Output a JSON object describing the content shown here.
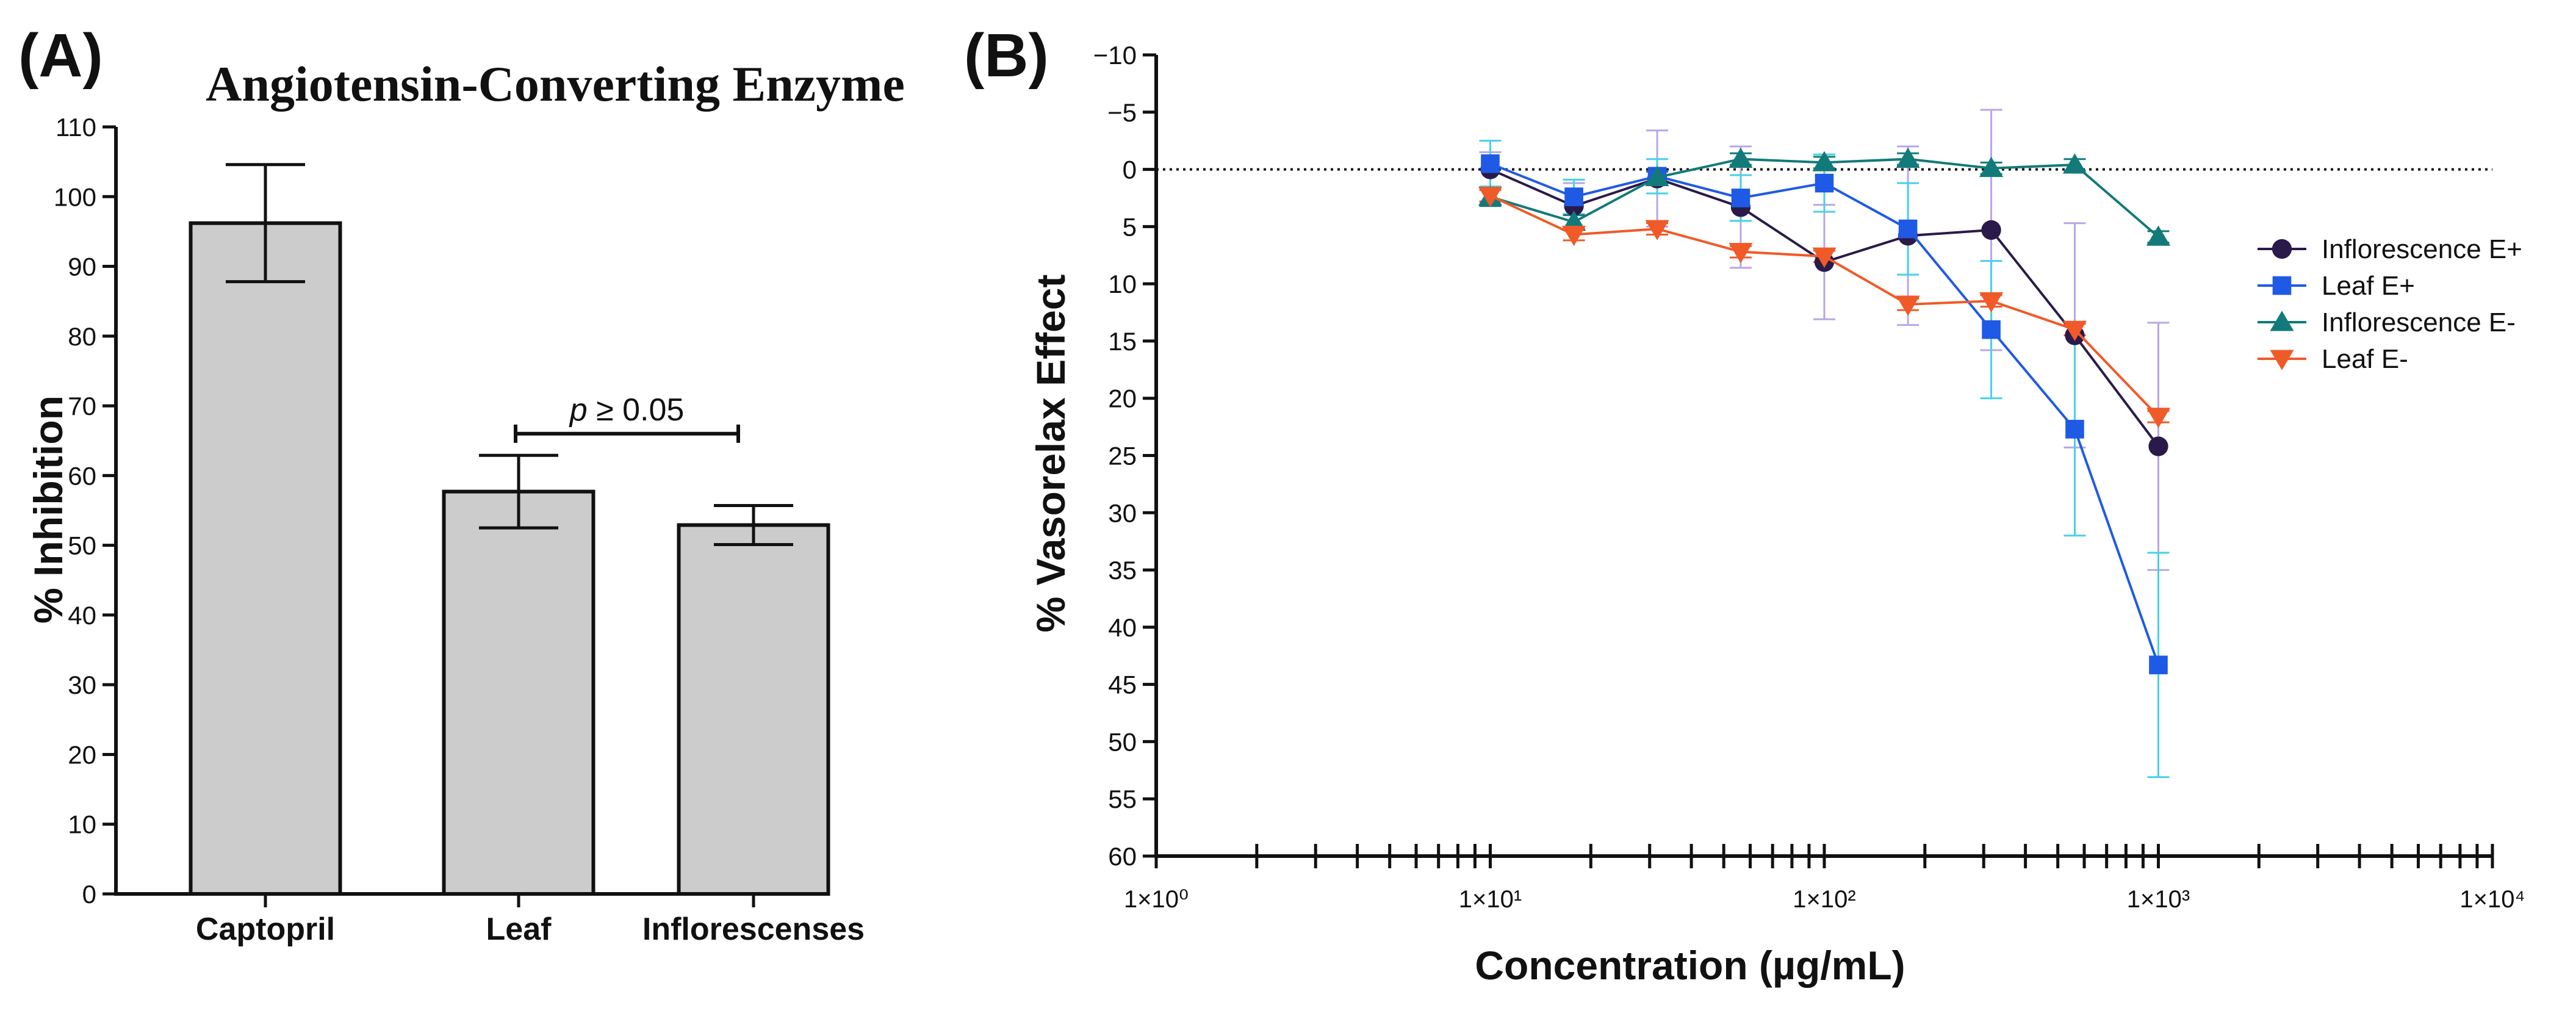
{
  "panels": {
    "a_label": "(A)",
    "b_label": "(B)"
  },
  "chart_data": [
    {
      "id": "A",
      "type": "bar",
      "title": "Angiotensin-Converting Enzyme",
      "xlabel": "",
      "ylabel": "% Inhibition",
      "ylim": [
        0,
        110
      ],
      "yticks": [
        0,
        10,
        20,
        30,
        40,
        50,
        60,
        70,
        80,
        90,
        100,
        110
      ],
      "categories": [
        "Captopril",
        "Leaf",
        "Inflorescenses"
      ],
      "values": [
        96.2,
        57.7,
        52.9
      ],
      "errors": [
        8.4,
        5.2,
        2.8
      ],
      "bar_color": "#cccccc",
      "significance": {
        "from": 1,
        "to": 2,
        "y": 66,
        "label_italic": "p",
        "label_rest": " ≥ 0.05"
      }
    },
    {
      "id": "B",
      "type": "line",
      "xscale": "log",
      "xlim": [
        1,
        10000
      ],
      "ylim": [
        -10,
        60
      ],
      "y_inverted": true,
      "yticks": [
        -10,
        -5,
        0,
        5,
        10,
        15,
        20,
        25,
        30,
        35,
        40,
        45,
        50,
        55,
        60
      ],
      "ytick_labels": [
        "−10",
        "−5",
        "0",
        "5",
        "10",
        "15",
        "20",
        "25",
        "30",
        "35",
        "40",
        "45",
        "50",
        "55",
        "60"
      ],
      "xtick_labels": [
        {
          "value": 1,
          "label": "1×10⁰"
        },
        {
          "value": 10,
          "label": "1×10¹"
        },
        {
          "value": 100,
          "label": "1×10²"
        },
        {
          "value": 1000,
          "label": "1×10³"
        },
        {
          "value": 10000,
          "label": "1×10⁴"
        }
      ],
      "xlabel": "Concentration (µg/mL)",
      "ylabel": "% Vasorelax Effect",
      "reference_line": 0,
      "legend_position": "right",
      "series": [
        {
          "name": "Inflorescence E+",
          "marker": "circle",
          "color": "#2a1a4a",
          "error_color": "#b8a6e6",
          "x": [
            10,
            17.8,
            31.6,
            56.2,
            100,
            178,
            316,
            562,
            1000
          ],
          "values": [
            0,
            3.2,
            0.8,
            3.3,
            8.1,
            5.8,
            5.3,
            14.5,
            24.2
          ],
          "errors": [
            1.5,
            2.0,
            4.2,
            5.3,
            5.0,
            7.8,
            10.5,
            9.8,
            10.8
          ]
        },
        {
          "name": "Leaf E+",
          "marker": "square",
          "color": "#1f5ae6",
          "error_color": "#48d0e8",
          "x": [
            10,
            17.8,
            31.6,
            56.2,
            100,
            178,
            316,
            562,
            1000
          ],
          "values": [
            -0.5,
            2.4,
            0.6,
            2.5,
            1.2,
            5.2,
            14.0,
            22.7,
            43.3
          ],
          "errors": [
            2.0,
            1.5,
            1.5,
            2.0,
            2.5,
            4.0,
            6.0,
            9.3,
            9.8
          ]
        },
        {
          "name": "Inflorescence E-",
          "marker": "triangle-up",
          "color": "#137a7a",
          "error_color": "#137a7a",
          "x": [
            10,
            17.8,
            31.6,
            56.2,
            100,
            178,
            316,
            562,
            1000
          ],
          "values": [
            2.4,
            4.6,
            0.7,
            -0.9,
            -0.6,
            -0.9,
            -0.1,
            -0.4,
            5.9
          ],
          "errors": [
            0.8,
            0.6,
            0.5,
            0.5,
            0.5,
            0.5,
            0.5,
            0.5,
            0.5
          ]
        },
        {
          "name": "Leaf E-",
          "marker": "triangle-down",
          "color": "#f05a28",
          "error_color": "#f05a28",
          "x": [
            10,
            17.8,
            31.6,
            56.2,
            100,
            178,
            316,
            562,
            1000
          ],
          "values": [
            2.3,
            5.7,
            5.2,
            7.2,
            7.6,
            11.8,
            11.5,
            14.0,
            21.6
          ],
          "errors": [
            0.5,
            0.5,
            0.5,
            0.5,
            0.5,
            0.5,
            0.5,
            0.5,
            0.5
          ]
        }
      ]
    }
  ]
}
